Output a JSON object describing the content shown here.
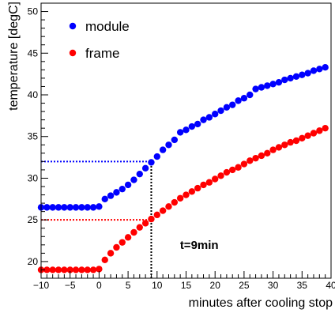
{
  "chart_data": {
    "type": "scatter",
    "xlabel": "minutes after cooling stop",
    "ylabel": "temperature [degC]",
    "xlim": [
      -10,
      40
    ],
    "ylim": [
      18,
      51
    ],
    "x_ticks": [
      -10,
      -5,
      0,
      5,
      10,
      15,
      20,
      25,
      30,
      35,
      40
    ],
    "x_tick_labels": [
      "−10",
      "−5",
      "0",
      "5",
      "10",
      "15",
      "20",
      "25",
      "30",
      "35",
      "40"
    ],
    "y_ticks": [
      20,
      25,
      30,
      35,
      40,
      45,
      50
    ],
    "y_tick_labels": [
      "20",
      "25",
      "30",
      "35",
      "40",
      "45",
      "50"
    ],
    "legend_position": "top-left",
    "series": [
      {
        "name": "module",
        "color": "#0000ff",
        "x": [
          -10,
          -9,
          -8,
          -7,
          -6,
          -5,
          -4,
          -3,
          -2,
          -1,
          0,
          1,
          2,
          3,
          4,
          5,
          6,
          7,
          8,
          9,
          10,
          11,
          12,
          13,
          14,
          15,
          16,
          17,
          18,
          19,
          20,
          21,
          22,
          23,
          24,
          25,
          26,
          27,
          28,
          29,
          30,
          31,
          32,
          33,
          34,
          35,
          36,
          37,
          38,
          39
        ],
        "values": [
          26.5,
          26.5,
          26.5,
          26.5,
          26.5,
          26.5,
          26.5,
          26.5,
          26.5,
          26.5,
          26.6,
          27.5,
          27.9,
          28.3,
          28.7,
          29.2,
          29.8,
          30.5,
          31.2,
          31.9,
          32.6,
          33.4,
          34.0,
          34.6,
          35.5,
          35.8,
          36.2,
          36.5,
          37.0,
          37.3,
          37.7,
          38.1,
          38.5,
          38.8,
          39.3,
          39.6,
          40.0,
          40.7,
          40.9,
          41.1,
          41.3,
          41.5,
          41.8,
          42.0,
          42.2,
          42.4,
          42.6,
          42.9,
          43.1,
          43.3
        ]
      },
      {
        "name": "frame",
        "color": "#ff0000",
        "x": [
          -10,
          -9,
          -8,
          -7,
          -6,
          -5,
          -4,
          -3,
          -2,
          -1,
          0,
          1,
          2,
          3,
          4,
          5,
          6,
          7,
          8,
          9,
          10,
          11,
          12,
          13,
          14,
          15,
          16,
          17,
          18,
          19,
          20,
          21,
          22,
          23,
          24,
          25,
          26,
          27,
          28,
          29,
          30,
          31,
          32,
          33,
          34,
          35,
          36,
          37,
          38,
          39
        ],
        "values": [
          19.0,
          19.0,
          19.0,
          19.0,
          19.0,
          19.0,
          19.0,
          19.0,
          19.0,
          19.0,
          19.1,
          20.2,
          21.0,
          21.7,
          22.3,
          22.9,
          23.5,
          24.1,
          24.6,
          25.1,
          25.6,
          26.1,
          26.6,
          27.1,
          27.6,
          28.0,
          28.4,
          28.8,
          29.2,
          29.5,
          29.9,
          30.3,
          30.7,
          31.0,
          31.3,
          31.7,
          32.1,
          32.4,
          32.7,
          33.0,
          33.4,
          33.7,
          34.0,
          34.3,
          34.5,
          34.8,
          35.1,
          35.4,
          35.7,
          36.0
        ]
      }
    ],
    "reference_lines": [
      {
        "color": "#0000ff",
        "y": 32,
        "x_from": -10,
        "x_to": 9
      },
      {
        "color": "#ff0000",
        "y": 25,
        "x_from": -10,
        "x_to": 9
      },
      {
        "color": "#000000",
        "x": 9,
        "y_from": 18,
        "y_to": 32
      }
    ],
    "annotation": {
      "text": "t=9min",
      "x": 13,
      "y": 22
    }
  }
}
